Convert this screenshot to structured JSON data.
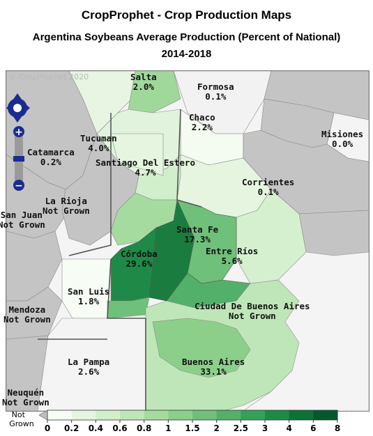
{
  "header": {
    "title": "CropProphet - Crop Production Maps",
    "subtitle": "Argentina Soybeans Average Production (Percent of National)",
    "period": "2014-2018"
  },
  "map": {
    "copyright": "© CropProphet 2020",
    "regions": [
      {
        "name": "Salta",
        "value": "2.0%"
      },
      {
        "name": "Formosa",
        "value": "0.1%"
      },
      {
        "name": "Chaco",
        "value": "2.2%"
      },
      {
        "name": "Misiones",
        "value": "0.0%"
      },
      {
        "name": "Tucuman",
        "value": "4.0%"
      },
      {
        "name": "Catamarca",
        "value": "0.2%"
      },
      {
        "name": "Santiago Del Estero",
        "value": "4.7%"
      },
      {
        "name": "Corrientes",
        "value": "0.1%"
      },
      {
        "name": "La Rioja",
        "value": "Not Grown"
      },
      {
        "name": "San Juan",
        "value": "Not Grown"
      },
      {
        "name": "Santa Fe",
        "value": "17.3%"
      },
      {
        "name": "Córdoba",
        "value": "29.6%"
      },
      {
        "name": "Entre Ríos",
        "value": "5.6%"
      },
      {
        "name": "San Luis",
        "value": "1.8%"
      },
      {
        "name": "Ciudad De Buenos Aires",
        "value": "Not Grown"
      },
      {
        "name": "Mendoza",
        "value": "Not Grown"
      },
      {
        "name": "La Pampa",
        "value": "2.6%"
      },
      {
        "name": "Buenos Aires",
        "value": "33.1%"
      },
      {
        "name": "Neuquén",
        "value": "Not Grown"
      }
    ]
  },
  "legend": {
    "not_grown_label": "Not Grown",
    "ticks": [
      "0",
      "0.2",
      "0.4",
      "0.6",
      "0.8",
      "1",
      "1.5",
      "2",
      "2.5",
      "3",
      "4",
      "6",
      "8"
    ],
    "colors": [
      "#f7fcf5",
      "#e5f5e0",
      "#d2efcb",
      "#bfe6b8",
      "#a6dba0",
      "#8ccf8a",
      "#6fc07a",
      "#52b06a",
      "#35a05a",
      "#1f8a48",
      "#0d7238",
      "#005a2b"
    ],
    "not_grown_color": "#bfbfbf"
  },
  "colors": {
    "not_grown_area": "#c4c4c4",
    "no_data_area": "#f4f4f4",
    "border": "#555555"
  },
  "controls": {
    "pan": "pan-control",
    "zoom_in": "+",
    "zoom_out": "−"
  }
}
